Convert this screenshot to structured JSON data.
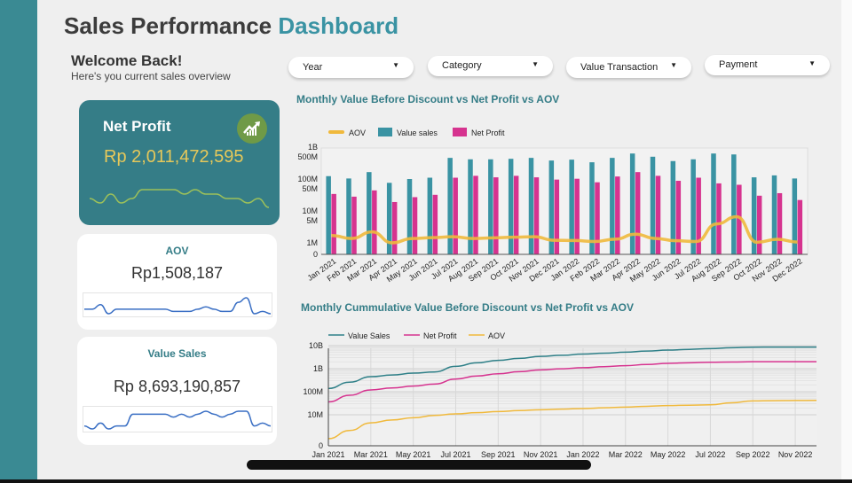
{
  "header": {
    "title_main": "Sales Performance",
    "title_accent": "Dashboard"
  },
  "welcome": {
    "title": "Welcome Back!",
    "subtitle": "Here's you current sales overview"
  },
  "kpis": {
    "net_profit": {
      "label": "Net Profit",
      "value": "Rp 2,011,472,595",
      "icon": "trending-up-chart-icon",
      "sparkline": [
        3,
        2,
        4,
        2,
        3,
        5,
        5,
        5,
        5,
        4,
        5,
        4,
        4,
        3,
        3,
        2,
        3,
        1
      ]
    },
    "aov": {
      "label": "AOV",
      "value": "Rp1,508,187",
      "sparkline": [
        3,
        3,
        5,
        1,
        3,
        3,
        3,
        3,
        3,
        3,
        3,
        2,
        2,
        2,
        3,
        4,
        3,
        2,
        2,
        6,
        8,
        1,
        2,
        1
      ]
    },
    "value_sales": {
      "label": "Value Sales",
      "value": "Rp 8,693,190,857",
      "sparkline": [
        2,
        1,
        3,
        1,
        2,
        2,
        6,
        6,
        6,
        6,
        6,
        5,
        6,
        5,
        6,
        7,
        6,
        5,
        6,
        7,
        7,
        2,
        3,
        2
      ]
    }
  },
  "filters": [
    {
      "label": "Year"
    },
    {
      "label": "Category"
    },
    {
      "label": "Value Transaction"
    },
    {
      "label": "Payment"
    }
  ],
  "colors": {
    "teal": "#3a93a3",
    "magenta": "#d6338f",
    "gold": "#f0b93c",
    "strip": "#3a8a93"
  },
  "chart_data": [
    {
      "type": "bar",
      "title": "Monthly Value Before Discount vs Net Profit vs AOV",
      "scale": "log",
      "y_ticks": [
        "1B",
        "500M",
        "100M",
        "50M",
        "10M",
        "5M",
        "1M",
        "0"
      ],
      "legend": "top-left",
      "categories": [
        "Jan 2021",
        "Feb 2021",
        "Mar 2021",
        "Apr 2021",
        "May 2021",
        "Jun 2021",
        "Jul 2021",
        "Aug 2021",
        "Sep 2021",
        "Oct 2021",
        "Nov 2021",
        "Dec 2021",
        "Jan 2022",
        "Feb 2022",
        "Mar 2022",
        "Apr 2022",
        "May 2022",
        "Jun 2022",
        "Jul 2022",
        "Aug 2022",
        "Sep 2022",
        "Oct 2022",
        "Nov 2022",
        "Dec 2022"
      ],
      "series": [
        {
          "name": "AOV",
          "type": "line",
          "color": "#f0b93c",
          "values": [
            1700000,
            1370000,
            2200000,
            1000000,
            1370000,
            1460000,
            1550000,
            1370000,
            1430000,
            1500000,
            1550000,
            1200000,
            1180000,
            1100000,
            1300000,
            1870000,
            1370000,
            1160000,
            1100000,
            3900000,
            6600000,
            1040000,
            1290000,
            1060000
          ]
        },
        {
          "name": "Value sales",
          "type": "bar",
          "color": "#3a93a3",
          "values": [
            123000000,
            104000000,
            165000000,
            76000000,
            100000000,
            110000000,
            460000000,
            415000000,
            415000000,
            430000000,
            460000000,
            380000000,
            405000000,
            335000000,
            460000000,
            630000000,
            500000000,
            365000000,
            415000000,
            630000000,
            590000000,
            113000000,
            130000000,
            104000000
          ]
        },
        {
          "name": "Net Profit",
          "type": "bar",
          "color": "#d6338f",
          "values": [
            34000000,
            28000000,
            44000000,
            19000000,
            27000000,
            32000000,
            110000000,
            126000000,
            113000000,
            126000000,
            113000000,
            96000000,
            102000000,
            79000000,
            120000000,
            165000000,
            126000000,
            88000000,
            110000000,
            73000000,
            66000000,
            30000000,
            36000000,
            22000000
          ]
        }
      ]
    },
    {
      "type": "line",
      "title": "Monthly Cummulative Value Before Discount vs Net Profit vs AOV",
      "scale": "log",
      "grid": true,
      "legend": "top-left",
      "y_ticks": [
        "10B",
        "1B",
        "100M",
        "10M",
        "0"
      ],
      "x_ticks": [
        "Jan 2021",
        "Mar 2021",
        "May 2021",
        "Jul 2021",
        "Sep 2021",
        "Nov 2021",
        "Jan 2022",
        "Mar 2022",
        "May 2022",
        "Jul 2022",
        "Sep 2022",
        "Nov 2022"
      ],
      "series": [
        {
          "name": "Value Sales",
          "color": "#2f8088",
          "values": [
            138000000,
            260000000,
            450000000,
            530000000,
            640000000,
            720000000,
            1260000000,
            1800000000,
            2300000000,
            2800000000,
            3400000000,
            3800000000,
            4300000000,
            4700000000,
            5200000000,
            5800000000,
            6400000000,
            6900000000,
            7400000000,
            8100000000,
            8600000000,
            8700000000,
            8700000000,
            8700000000
          ]
        },
        {
          "name": "Net Profit",
          "color": "#d6338f",
          "values": [
            36000000,
            70000000,
            120000000,
            145000000,
            175000000,
            215000000,
            355000000,
            480000000,
            600000000,
            740000000,
            890000000,
            990000000,
            1100000000,
            1220000000,
            1350000000,
            1520000000,
            1700000000,
            1800000000,
            1900000000,
            1950000000,
            2000000000,
            2000000000,
            2010000000,
            2010000000
          ]
        },
        {
          "name": "AOV",
          "color": "#f0b93c",
          "values": [
            1700000,
            3100000,
            5500000,
            6800000,
            8000000,
            9500000,
            10900000,
            12300000,
            13800000,
            15200000,
            16500000,
            17600000,
            18600000,
            20000000,
            21500000,
            23300000,
            25000000,
            26000000,
            27000000,
            33000000,
            40000000,
            41000000,
            41500000,
            42000000
          ]
        }
      ]
    }
  ]
}
